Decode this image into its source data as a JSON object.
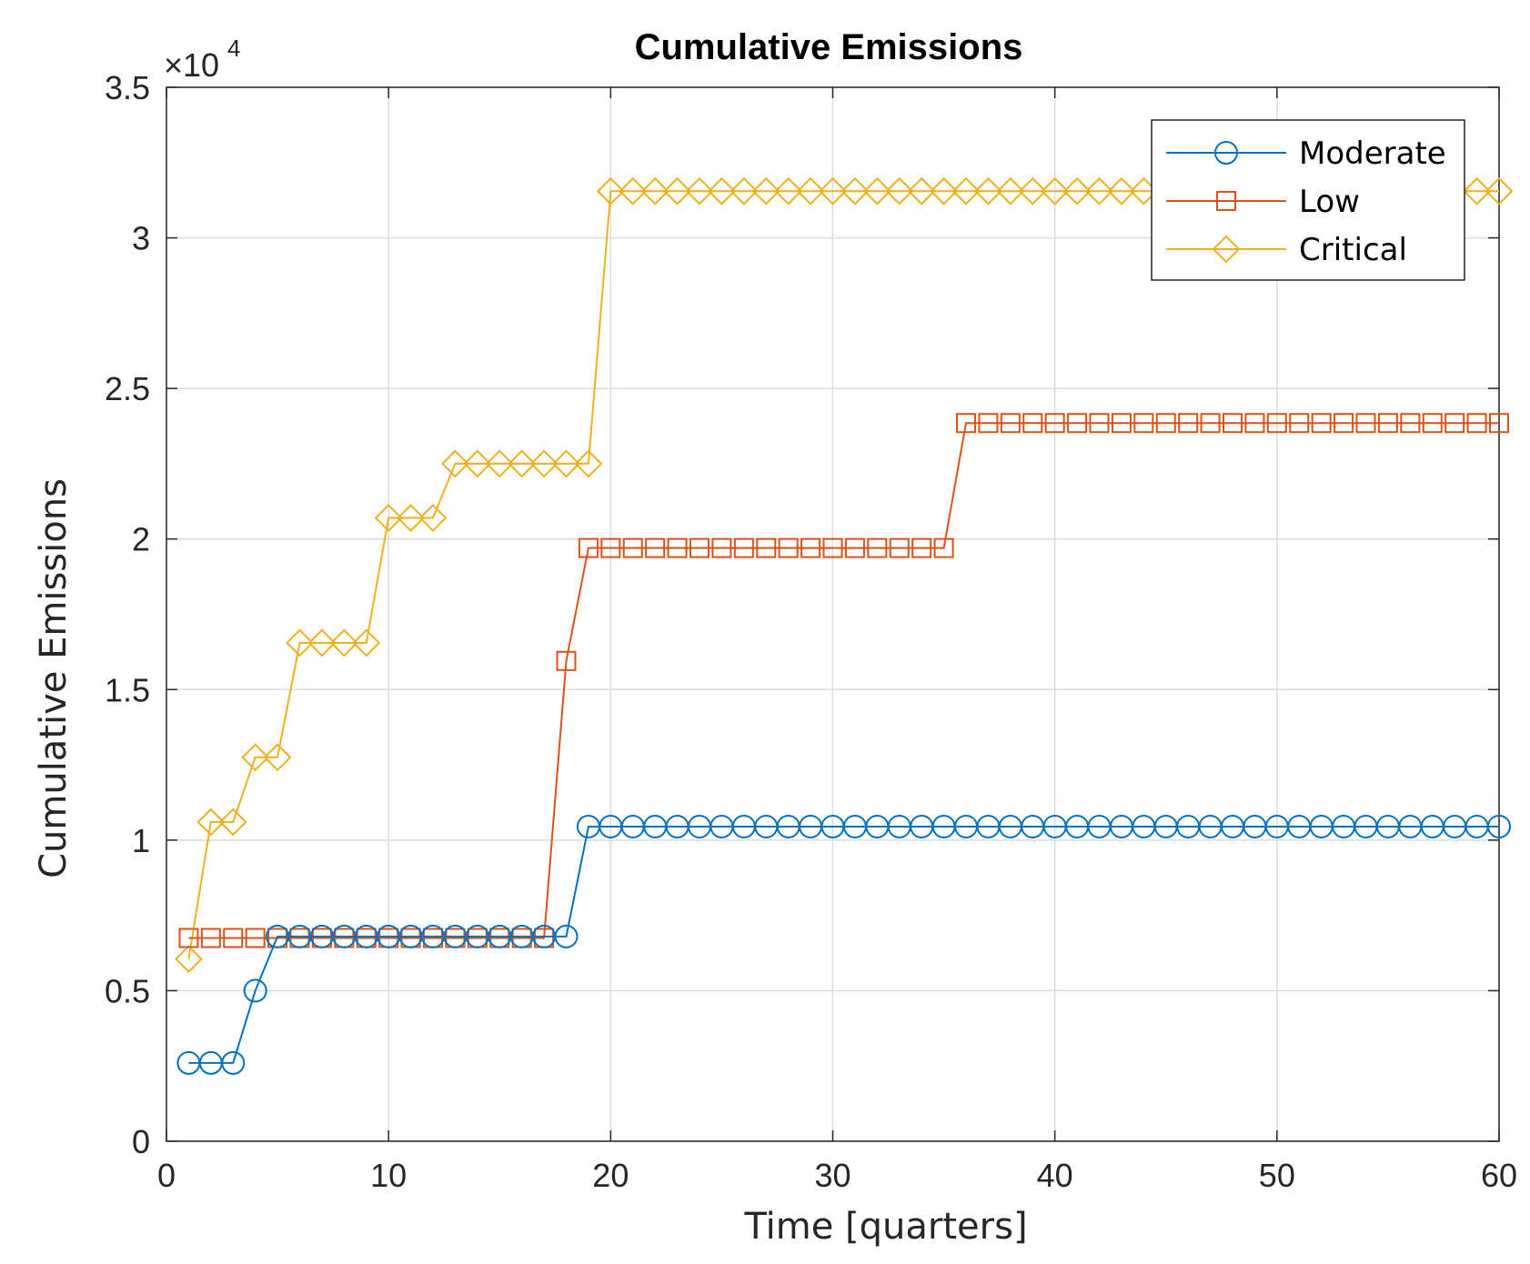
{
  "chart_data": {
    "type": "line",
    "title": "Cumulative Emissions",
    "xlabel": "Time [quarters]",
    "ylabel": "Cumulative Emissions",
    "y_exponent_base": "×10",
    "y_exponent_power": "4",
    "xlim": [
      0,
      60
    ],
    "ylim": [
      0,
      3.5
    ],
    "xticks": [
      0,
      10,
      20,
      30,
      40,
      50,
      60
    ],
    "yticks": [
      0,
      0.5,
      1,
      1.5,
      2,
      2.5,
      3,
      3.5
    ],
    "grid": true,
    "legend_position": "top-right",
    "x": [
      1,
      2,
      3,
      4,
      5,
      6,
      7,
      8,
      9,
      10,
      11,
      12,
      13,
      14,
      15,
      16,
      17,
      18,
      19,
      20,
      21,
      22,
      23,
      24,
      25,
      26,
      27,
      28,
      29,
      30,
      31,
      32,
      33,
      34,
      35,
      36,
      37,
      38,
      39,
      40,
      41,
      42,
      43,
      44,
      45,
      46,
      47,
      48,
      49,
      50,
      51,
      52,
      53,
      54,
      55,
      56,
      57,
      58,
      59,
      60
    ],
    "series": [
      {
        "name": "Moderate",
        "color": "#0072BD",
        "marker": "circle",
        "values": [
          0.26,
          0.26,
          0.26,
          0.5,
          0.68,
          0.68,
          0.68,
          0.68,
          0.68,
          0.68,
          0.68,
          0.68,
          0.68,
          0.68,
          0.68,
          0.68,
          0.68,
          0.68,
          1.045,
          1.045,
          1.045,
          1.045,
          1.045,
          1.045,
          1.045,
          1.045,
          1.045,
          1.045,
          1.045,
          1.045,
          1.045,
          1.045,
          1.045,
          1.045,
          1.045,
          1.045,
          1.045,
          1.045,
          1.045,
          1.045,
          1.045,
          1.045,
          1.045,
          1.045,
          1.045,
          1.045,
          1.045,
          1.045,
          1.045,
          1.045,
          1.045,
          1.045,
          1.045,
          1.045,
          1.045,
          1.045,
          1.045,
          1.045,
          1.045,
          1.045
        ]
      },
      {
        "name": "Low",
        "color": "#D95319",
        "marker": "square",
        "values": [
          0.675,
          0.675,
          0.675,
          0.675,
          0.675,
          0.675,
          0.675,
          0.675,
          0.675,
          0.675,
          0.675,
          0.675,
          0.675,
          0.675,
          0.675,
          0.675,
          0.675,
          1.595,
          1.97,
          1.97,
          1.97,
          1.97,
          1.97,
          1.97,
          1.97,
          1.97,
          1.97,
          1.97,
          1.97,
          1.97,
          1.97,
          1.97,
          1.97,
          1.97,
          1.97,
          2.385,
          2.385,
          2.385,
          2.385,
          2.385,
          2.385,
          2.385,
          2.385,
          2.385,
          2.385,
          2.385,
          2.385,
          2.385,
          2.385,
          2.385,
          2.385,
          2.385,
          2.385,
          2.385,
          2.385,
          2.385,
          2.385,
          2.385,
          2.385,
          2.385
        ]
      },
      {
        "name": "Critical",
        "color": "#EDB120",
        "marker": "diamond",
        "values": [
          0.605,
          1.06,
          1.06,
          1.275,
          1.275,
          1.655,
          1.655,
          1.655,
          1.655,
          2.07,
          2.07,
          2.07,
          2.25,
          2.25,
          2.25,
          2.25,
          2.25,
          2.25,
          2.25,
          3.155,
          3.155,
          3.155,
          3.155,
          3.155,
          3.155,
          3.155,
          3.155,
          3.155,
          3.155,
          3.155,
          3.155,
          3.155,
          3.155,
          3.155,
          3.155,
          3.155,
          3.155,
          3.155,
          3.155,
          3.155,
          3.155,
          3.155,
          3.155,
          3.155,
          3.155,
          3.155,
          3.155,
          3.155,
          3.155,
          3.155,
          3.155,
          3.155,
          3.155,
          3.155,
          3.155,
          3.155,
          3.155,
          3.155,
          3.155,
          3.155
        ]
      }
    ]
  }
}
